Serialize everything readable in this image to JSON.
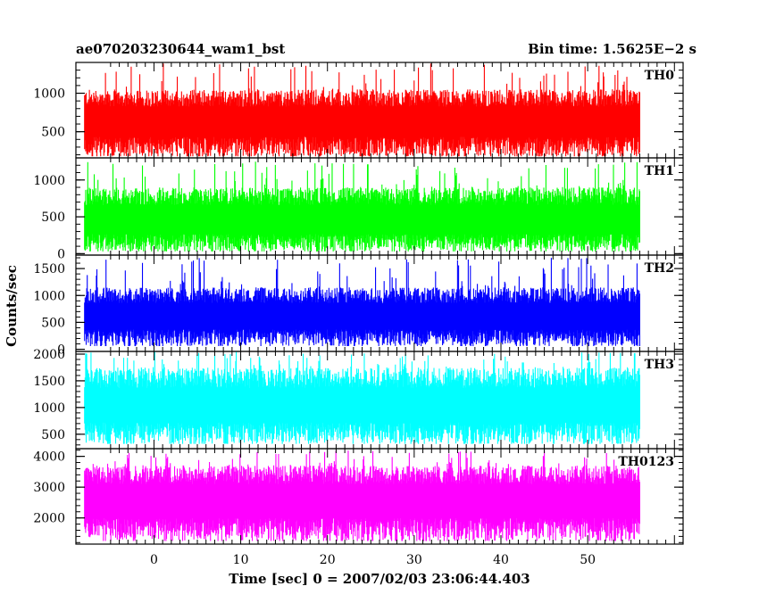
{
  "header": {
    "left_title": "ae070203230644_wam1_bst",
    "right_title": "Bin time: 1.5625E−2 s"
  },
  "chart_data": {
    "type": "line",
    "title": "ae070203230644_wam1_bst",
    "subtitle": "Bin time: 1.5625E−2 s",
    "xlabel": "Time [sec] 0 = 2007/02/03 23:06:44.403",
    "ylabel": "Counts/sec",
    "xlim": [
      -9,
      61
    ],
    "data_x_range": [
      -8,
      56
    ],
    "x_ticks": [
      0,
      10,
      20,
      30,
      40,
      50
    ],
    "x_tick_labels": [
      "0",
      "10",
      "20",
      "30",
      "40",
      "50"
    ],
    "grid": false,
    "panels": [
      {
        "name": "TH0",
        "color": "#ff0000",
        "ylim": [
          160,
          1400
        ],
        "y_ticks": [
          500,
          1000
        ],
        "y_tick_labels": [
          "500",
          "1000"
        ],
        "baseline": 640,
        "min": 180,
        "typical_max": 1050,
        "max": 1400
      },
      {
        "name": "TH1",
        "color": "#00ff00",
        "ylim": [
          -20,
          1300
        ],
        "y_ticks": [
          0,
          500,
          1000
        ],
        "y_tick_labels": [
          "0",
          "500",
          "1000"
        ],
        "baseline": 460,
        "min": 30,
        "typical_max": 900,
        "max": 1250
      },
      {
        "name": "TH2",
        "color": "#0000ff",
        "ylim": [
          -40,
          1750
        ],
        "y_ticks": [
          0,
          500,
          1000,
          1500
        ],
        "y_tick_labels": [
          "0",
          "500",
          "1000",
          "1500"
        ],
        "baseline": 620,
        "min": 60,
        "typical_max": 1150,
        "max": 1700
      },
      {
        "name": "TH3",
        "color": "#00ffff",
        "ylim": [
          230,
          2050
        ],
        "y_ticks": [
          500,
          1000,
          1500,
          2000
        ],
        "y_tick_labels": [
          "500",
          "1000",
          "1500",
          "2000"
        ],
        "baseline": 1050,
        "min": 320,
        "typical_max": 1750,
        "max": 2050
      },
      {
        "name": "TH0123",
        "color": "#ff00ff",
        "ylim": [
          1150,
          4250
        ],
        "y_ticks": [
          2000,
          3000,
          4000
        ],
        "y_tick_labels": [
          "2000",
          "3000",
          "4000"
        ],
        "baseline": 2600,
        "min": 1250,
        "typical_max": 3700,
        "max": 4200
      }
    ]
  }
}
